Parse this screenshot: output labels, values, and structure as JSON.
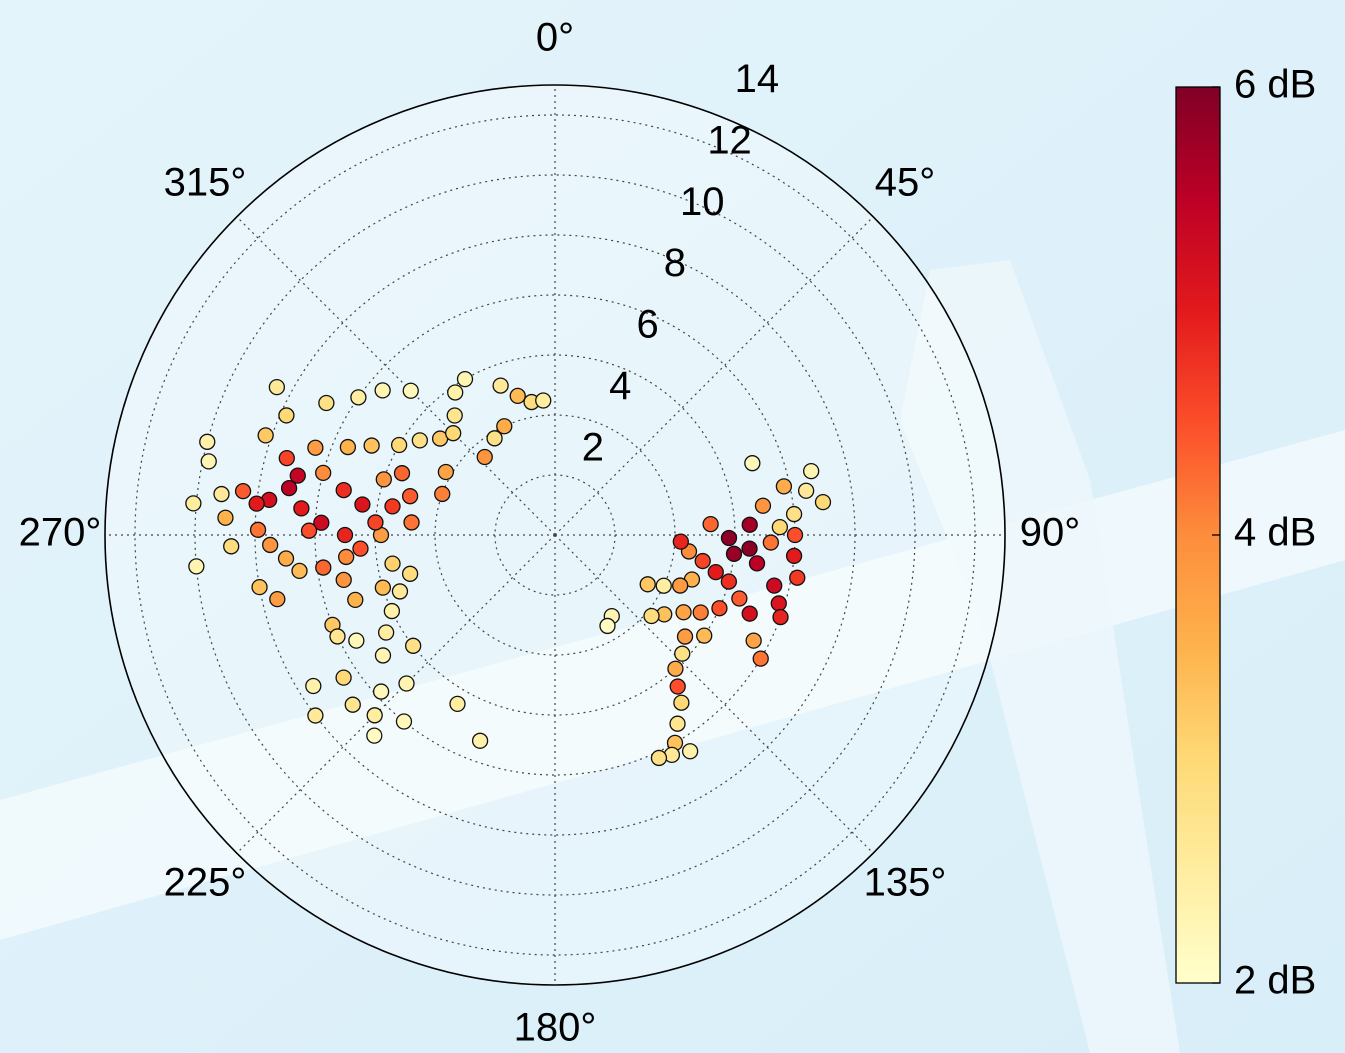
{
  "chart_data": {
    "type": "polar-scatter",
    "theta": [
      277,
      280,
      276,
      273,
      282,
      279,
      286,
      271,
      268,
      265,
      262,
      285,
      290,
      293,
      296,
      300,
      305,
      310,
      315,
      320,
      325,
      330,
      340,
      345,
      350,
      355,
      335,
      328,
      318,
      300,
      290,
      285,
      280,
      275,
      270,
      266,
      260,
      255,
      250,
      245,
      240,
      235,
      232,
      228,
      225,
      222,
      230,
      236,
      242,
      248,
      252,
      258,
      262,
      257,
      260,
      268,
      273,
      277,
      282,
      285,
      278,
      289,
      294,
      300,
      305,
      310,
      315,
      298,
      270,
      274,
      288,
      292,
      283,
      276,
      271,
      264,
      253,
      245,
      238,
      233,
      225,
      219,
      210,
      200,
      265,
      275,
      97,
      100,
      103,
      105,
      108,
      112,
      115,
      118,
      96,
      94,
      98,
      92,
      88,
      85,
      80,
      82,
      78,
      76,
      83,
      90,
      95,
      100,
      103,
      107,
      110,
      112,
      109,
      114,
      118,
      121,
      126,
      130,
      124,
      128,
      133,
      138,
      141,
      143,
      147,
      150,
      152,
      148,
      155,
      70,
      87,
      91,
      86,
      93,
      145,
      150,
      118,
      121
    ],
    "r": [
      9.6,
      9.0,
      8.5,
      7.8,
      7.2,
      6.5,
      9.3,
      9.9,
      9.5,
      9.0,
      8.6,
      8.0,
      8.5,
      7.5,
      6.8,
      6.0,
      5.5,
      5.0,
      4.8,
      5.2,
      5.8,
      6.0,
      5.3,
      4.8,
      4.5,
      4.5,
      4.0,
      3.8,
      3.5,
      4.2,
      4.0,
      5.0,
      5.5,
      4.8,
      5.8,
      6.5,
      5.5,
      5.0,
      5.5,
      6.0,
      6.5,
      7.0,
      6.0,
      7.8,
      8.5,
      9.0,
      8.8,
      8.5,
      7.5,
      8.0,
      7.0,
      7.2,
      7.8,
      9.5,
      10.0,
      10.8,
      11.0,
      11.2,
      11.8,
      12.0,
      10.5,
      10.2,
      9.8,
      8.8,
      8.0,
      7.5,
      6.8,
      10.5,
      7.0,
      6.0,
      6.0,
      5.5,
      8.8,
      10.0,
      8.2,
      7.0,
      6.0,
      8.0,
      9.5,
      10.0,
      7.0,
      8.0,
      6.5,
      7.3,
      12.0,
      12.1,
      4.5,
      5.0,
      5.5,
      6.0,
      4.8,
      4.5,
      4.0,
      3.5,
      6.0,
      6.5,
      6.8,
      7.2,
      7.5,
      8.0,
      8.5,
      7.0,
      7.8,
      8.8,
      9.0,
      8.0,
      8.0,
      8.2,
      7.5,
      7.8,
      8.0,
      7.0,
      6.5,
      6.0,
      5.5,
      5.0,
      4.5,
      4.2,
      6.0,
      5.5,
      5.8,
      6.0,
      6.5,
      7.0,
      7.5,
      8.0,
      8.3,
      8.5,
      8.2,
      7.0,
      6.5,
      5.8,
      5.2,
      4.2,
      3.3,
      3.5,
      7.5,
      8.0
    ],
    "values": [
      5.2,
      5.5,
      5.0,
      5.3,
      4.8,
      5.1,
      4.6,
      4.2,
      3.9,
      3.6,
      3.4,
      4.0,
      3.8,
      3.5,
      3.3,
      3.0,
      2.8,
      3.2,
      3.0,
      2.7,
      2.4,
      2.3,
      2.6,
      3.4,
      2.9,
      2.5,
      3.6,
      2.8,
      3.9,
      3.7,
      4.1,
      4.4,
      4.7,
      4.2,
      3.8,
      4.5,
      3.1,
      2.9,
      2.6,
      2.4,
      2.5,
      2.3,
      2.8,
      2.2,
      2.5,
      2.1,
      2.7,
      3.0,
      2.2,
      3.2,
      3.5,
      3.9,
      4.3,
      3.8,
      3.3,
      2.9,
      3.5,
      2.6,
      2.3,
      2.4,
      4.4,
      3.2,
      3.0,
      2.8,
      2.5,
      2.3,
      2.2,
      2.6,
      4.9,
      4.6,
      3.9,
      4.3,
      5.4,
      5.0,
      4.5,
      4.0,
      3.4,
      2.7,
      2.4,
      2.6,
      2.3,
      2.2,
      2.5,
      2.4,
      2.3,
      2.5,
      4.0,
      4.6,
      5.0,
      4.8,
      3.5,
      3.8,
      2.5,
      3.2,
      5.8,
      5.9,
      5.5,
      4.2,
      3.0,
      2.8,
      2.6,
      3.9,
      3.6,
      2.3,
      3.0,
      4.5,
      5.0,
      4.7,
      5.3,
      5.1,
      4.9,
      5.2,
      4.4,
      4.5,
      4.1,
      3.7,
      3.3,
      2.9,
      3.4,
      3.8,
      2.8,
      3.6,
      4.5,
      3.0,
      2.7,
      3.3,
      2.6,
      2.4,
      2.8,
      2.2,
      5.7,
      5.9,
      4.3,
      4.9,
      2.3,
      2.1,
      3.7,
      4.2
    ],
    "rlim": [
      0,
      15
    ],
    "rticks": [
      2,
      4,
      6,
      8,
      10,
      12,
      14
    ],
    "thetaticks": [
      {
        "value": 0,
        "label": "0°"
      },
      {
        "value": 45,
        "label": "45°"
      },
      {
        "value": 90,
        "label": "90°"
      },
      {
        "value": 135,
        "label": "135°"
      },
      {
        "value": 180,
        "label": "180°"
      },
      {
        "value": 225,
        "label": "225°"
      },
      {
        "value": 270,
        "label": "270°"
      },
      {
        "value": 315,
        "label": "315°"
      }
    ],
    "colorbar": {
      "clim": [
        2,
        6
      ],
      "ticks": [
        {
          "value": 2,
          "label": "2 dB"
        },
        {
          "value": 4,
          "label": "4 dB"
        },
        {
          "value": 6,
          "label": "6 dB"
        }
      ],
      "colormap": [
        "#ffffcc",
        "#ffeda0",
        "#fed976",
        "#feb24c",
        "#fd8d3c",
        "#fc4e2a",
        "#e31a1c",
        "#bd0026",
        "#800026"
      ]
    }
  }
}
